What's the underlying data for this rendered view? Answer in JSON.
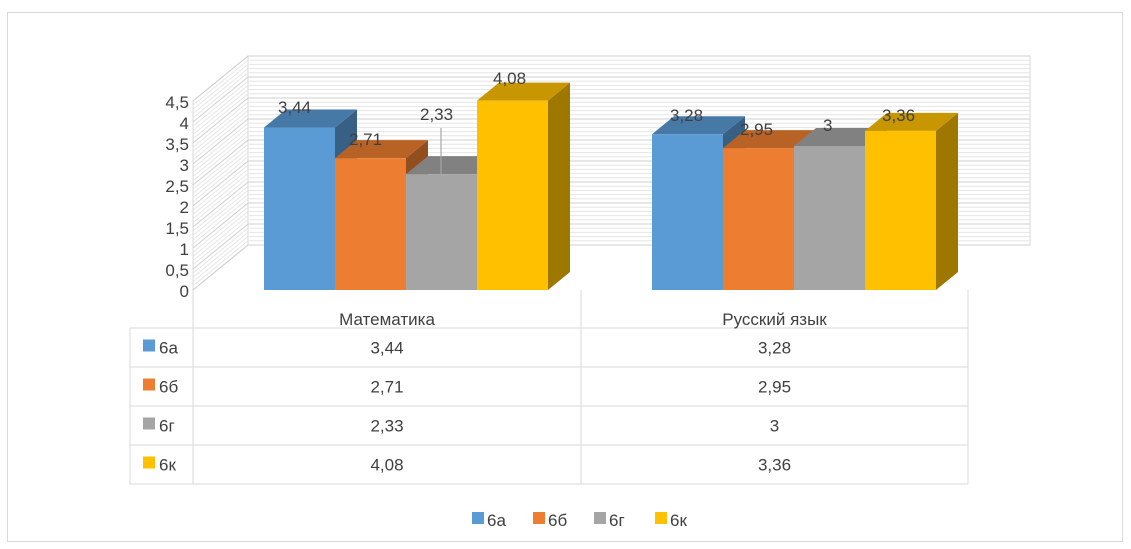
{
  "chart_data": {
    "type": "bar",
    "categories": [
      "Математика",
      "Русский язык"
    ],
    "series": [
      {
        "name": "6а",
        "values": [
          3.44,
          3.28
        ],
        "labels": [
          "3,44",
          "3,28"
        ],
        "color": "#5b9bd5"
      },
      {
        "name": "6б",
        "values": [
          2.71,
          2.95
        ],
        "labels": [
          "2,71",
          "2,95"
        ],
        "color": "#ed7d31"
      },
      {
        "name": "6г",
        "values": [
          2.33,
          3
        ],
        "labels": [
          "2,33",
          "3"
        ],
        "color": "#a5a5a5"
      },
      {
        "name": "6к",
        "values": [
          4.08,
          3.36
        ],
        "labels": [
          "4,08",
          "3,36"
        ],
        "color": "#ffc000"
      }
    ],
    "y_ticks": [
      "0",
      "0,5",
      "1",
      "1,5",
      "2",
      "2,5",
      "3",
      "3,5",
      "4",
      "4,5"
    ],
    "ylim": [
      0,
      4.5
    ],
    "three_d": true,
    "data_table": true,
    "legend": "bottom",
    "grid": true
  }
}
